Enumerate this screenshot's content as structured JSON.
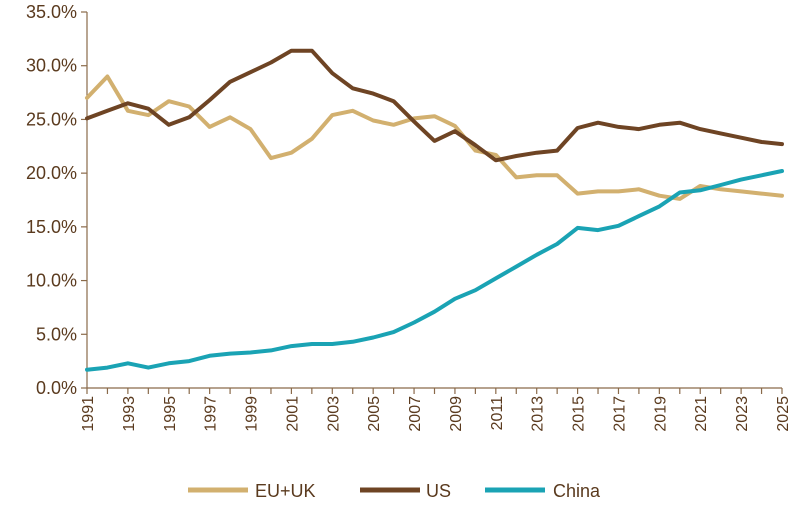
{
  "chart_data": {
    "type": "line",
    "title": "",
    "xlabel": "",
    "ylabel": "",
    "x": [
      1991,
      1992,
      1993,
      1994,
      1995,
      1996,
      1997,
      1998,
      1999,
      2000,
      2001,
      2002,
      2003,
      2004,
      2005,
      2006,
      2007,
      2008,
      2009,
      2010,
      2011,
      2012,
      2013,
      2014,
      2015,
      2016,
      2017,
      2018,
      2019,
      2020,
      2021,
      2022,
      2023,
      2024,
      2025
    ],
    "xlim": [
      1991,
      2025
    ],
    "x_tick_labels": [
      "1991",
      "1993",
      "1995",
      "1997",
      "1999",
      "2001",
      "2003",
      "2005",
      "2007",
      "2009",
      "2011",
      "2013",
      "2015",
      "2017",
      "2019",
      "2021",
      "2023",
      "2025"
    ],
    "ylim": [
      0,
      35
    ],
    "y_tick_labels": [
      "0.0%",
      "5.0%",
      "10.0%",
      "15.0%",
      "20.0%",
      "25.0%",
      "30.0%",
      "35.0%"
    ],
    "grid": false,
    "legend_position": "bottom",
    "series": [
      {
        "name": "EU+UK",
        "color": "#d2b06f",
        "values": [
          27.0,
          29.0,
          25.8,
          25.4,
          26.7,
          26.2,
          24.3,
          25.2,
          24.1,
          21.4,
          21.9,
          23.2,
          25.4,
          25.8,
          24.9,
          24.5,
          25.1,
          25.3,
          24.4,
          22.1,
          21.7,
          19.6,
          19.8,
          19.8,
          18.1,
          18.3,
          18.3,
          18.5,
          17.9,
          17.6,
          18.8,
          18.5,
          18.3,
          18.1,
          17.9
        ]
      },
      {
        "name": "US",
        "color": "#6e4424",
        "values": [
          25.1,
          25.8,
          26.5,
          26.0,
          24.5,
          25.2,
          26.8,
          28.5,
          29.4,
          30.3,
          31.4,
          31.4,
          29.3,
          27.9,
          27.4,
          26.7,
          24.8,
          23.0,
          23.9,
          22.6,
          21.2,
          21.6,
          21.9,
          22.1,
          24.2,
          24.7,
          24.3,
          24.1,
          24.5,
          24.7,
          24.1,
          23.7,
          23.3,
          22.9,
          22.7
        ]
      },
      {
        "name": "China",
        "color": "#1aa3b4",
        "values": [
          1.7,
          1.9,
          2.3,
          1.9,
          2.3,
          2.5,
          3.0,
          3.2,
          3.3,
          3.5,
          3.9,
          4.1,
          4.1,
          4.3,
          4.7,
          5.2,
          6.1,
          7.1,
          8.3,
          9.1,
          10.2,
          11.3,
          12.4,
          13.4,
          14.9,
          14.7,
          15.1,
          16.0,
          16.9,
          18.2,
          18.4,
          18.9,
          19.4,
          19.8,
          20.2
        ]
      }
    ]
  }
}
